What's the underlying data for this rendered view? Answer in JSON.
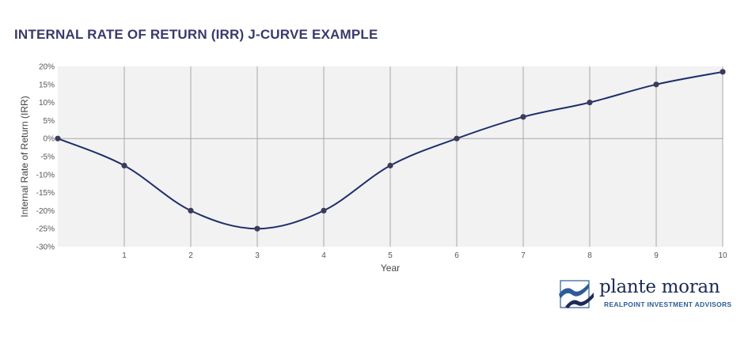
{
  "title": "INTERNAL RATE OF RETURN (IRR) J-CURVE EXAMPLE",
  "logo": {
    "name": "plante moran",
    "subtitle": "REALPOINT INVESTMENT ADVISORS"
  },
  "colors": {
    "line": "#1f2f6b",
    "marker": "#3d3b5c",
    "plot_background": "#f2f2f2",
    "grid": "#a8a8a8",
    "title": "#3a3a6a",
    "logo_accent": "#2d5d99"
  },
  "chart_data": {
    "type": "line",
    "title": "INTERNAL RATE OF RETURN (IRR) J-CURVE EXAMPLE",
    "xlabel": "Year",
    "ylabel": "Internal Rate of Return (IRR)",
    "x": [
      0,
      1,
      2,
      3,
      4,
      5,
      6,
      7,
      8,
      9,
      10
    ],
    "values": [
      0,
      -7.5,
      -20,
      -25,
      -20,
      -7.5,
      0,
      6,
      10,
      15,
      18.5
    ],
    "x_ticks": [
      "1",
      "2",
      "3",
      "4",
      "5",
      "6",
      "7",
      "8",
      "9",
      "10"
    ],
    "y_ticks": [
      "20%",
      "15%",
      "10%",
      "5%",
      "0%",
      "-5%",
      "-10%",
      "-15%",
      "-20%",
      "-25%",
      "-30%"
    ],
    "xlim": [
      0,
      10
    ],
    "ylim": [
      -30,
      20
    ],
    "grid": "vertical lines at each year, horizontal line at 0%",
    "legend": "none"
  }
}
